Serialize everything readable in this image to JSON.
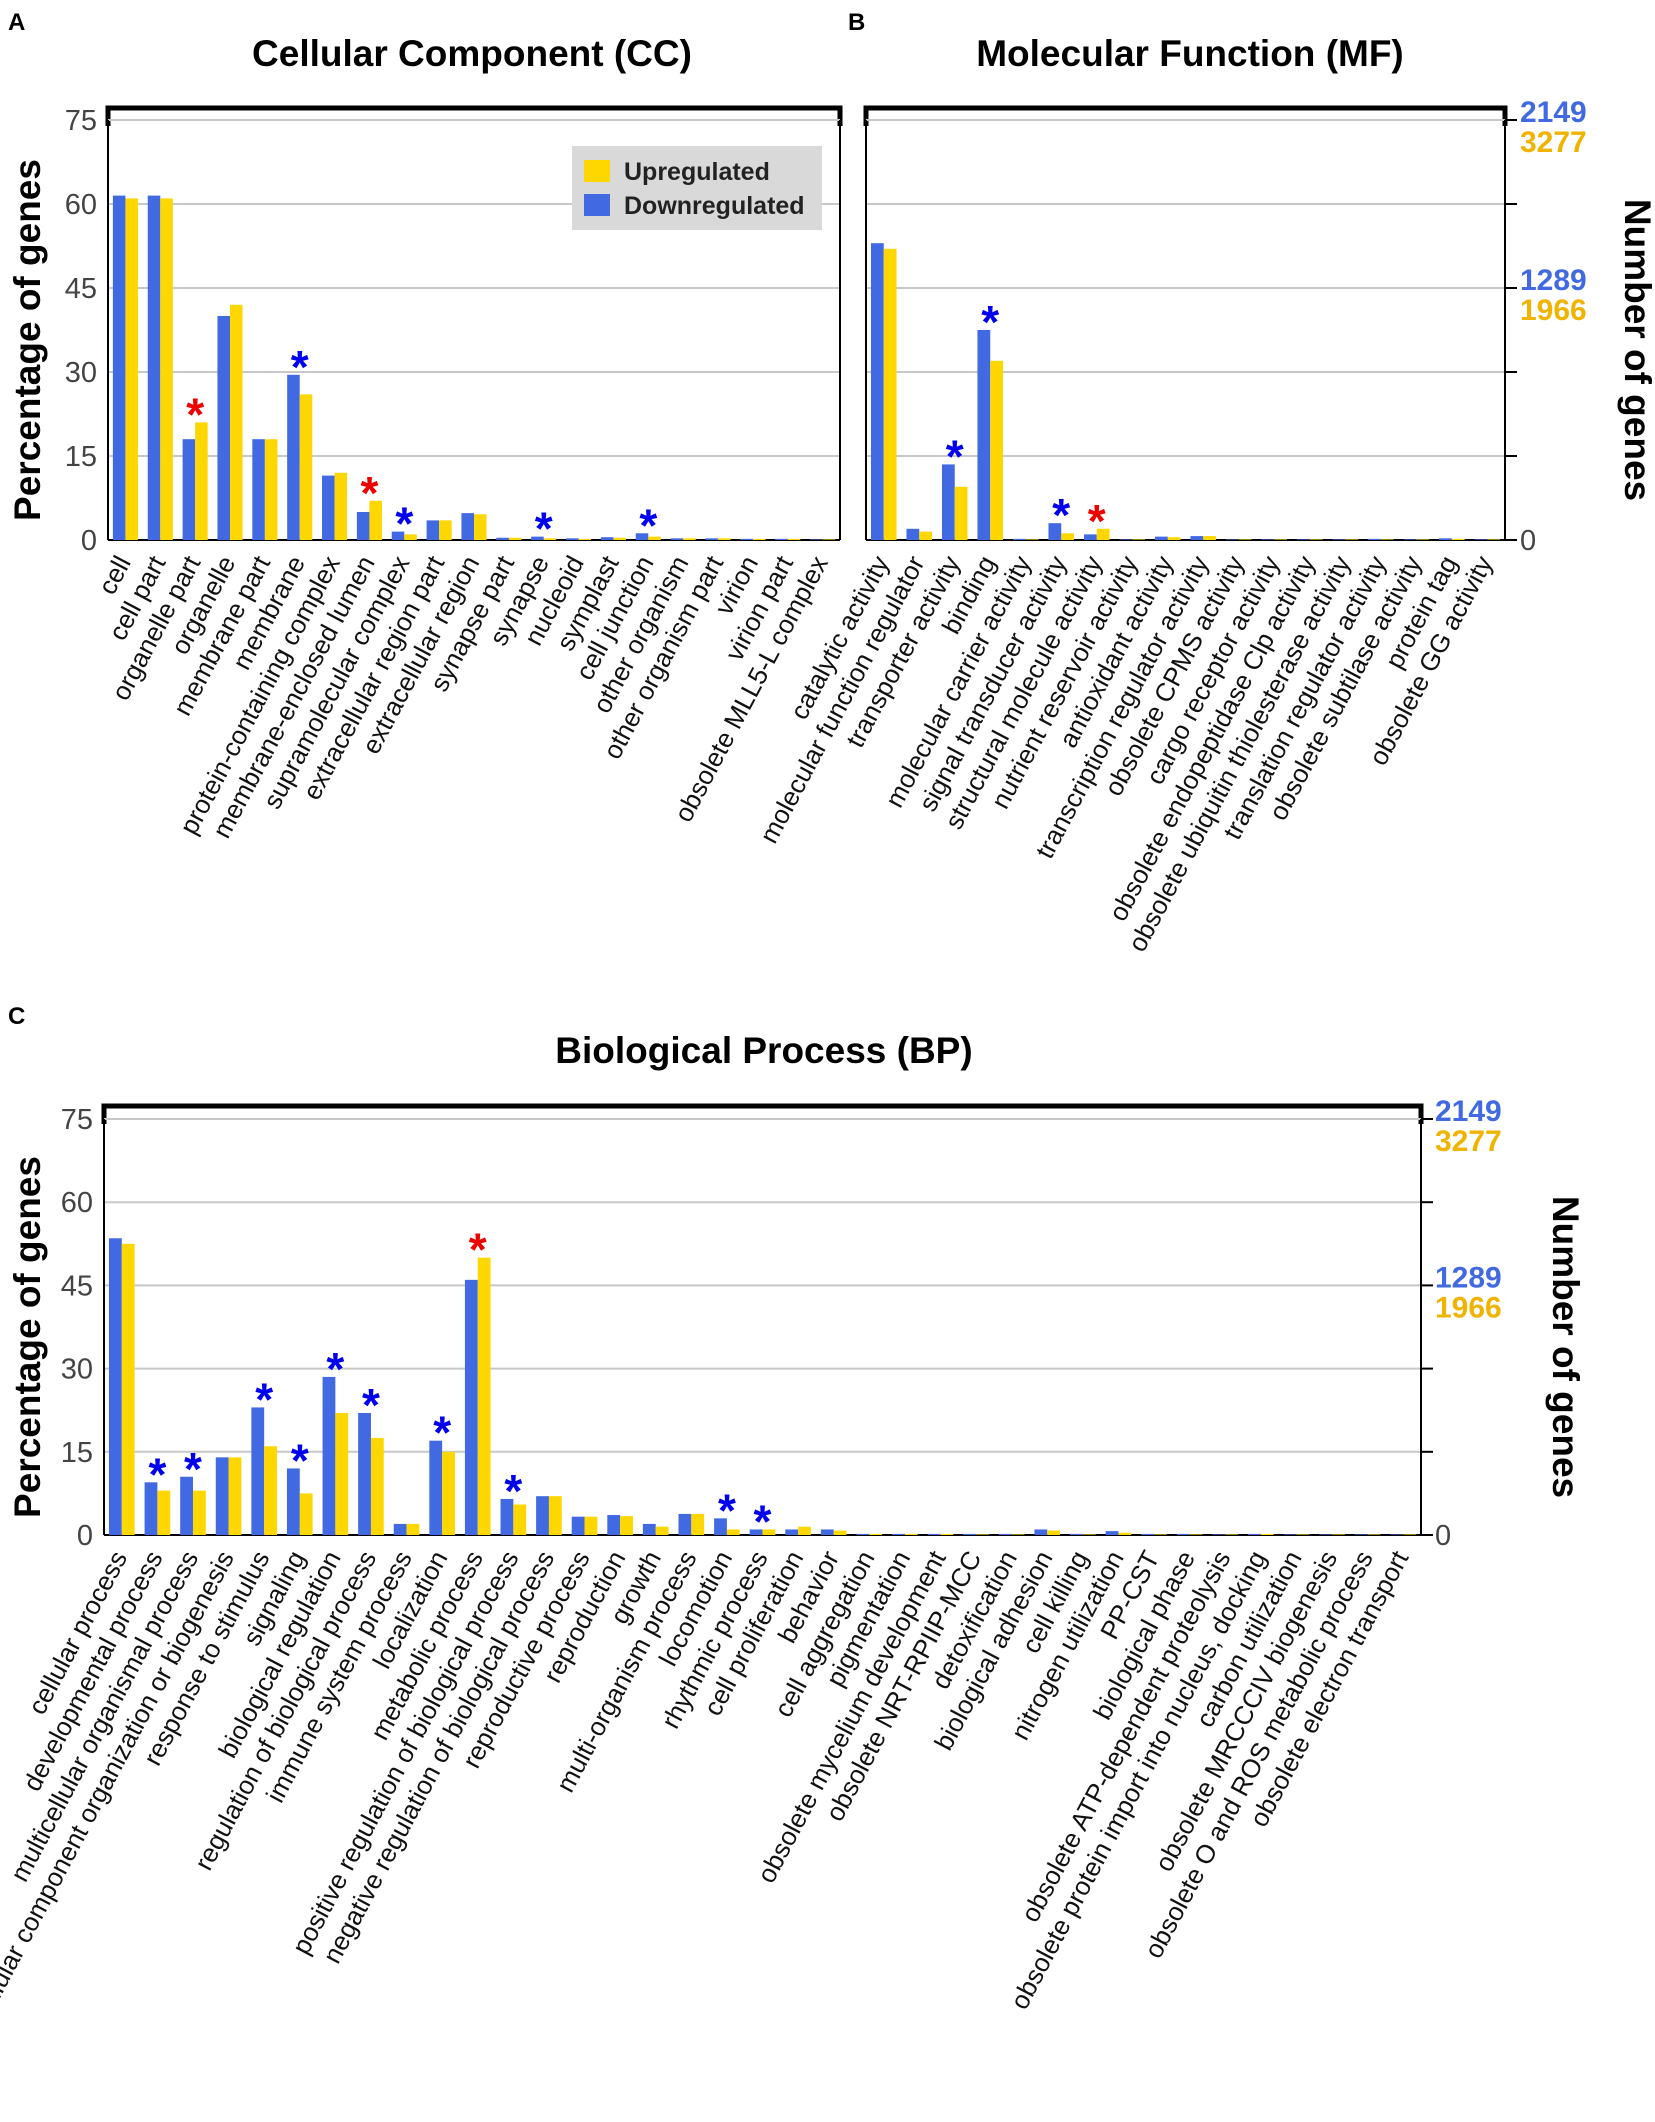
{
  "colors": {
    "downregulated": "#4169E1",
    "upregulated": "#FFD700",
    "down_count_text": "#4169E1",
    "up_count_text": "#F0B400",
    "star_down": "#0000EE",
    "star_up": "#EE0000"
  },
  "legend": {
    "up_label": "Upregulated",
    "down_label": "Downregulated"
  },
  "chart_data": [
    {
      "type": "bar",
      "panel": "A",
      "title": "Cellular Component (CC)",
      "ylabel": "Percentage of genes",
      "y2label": "",
      "ylim": [
        0,
        75
      ],
      "yticks": [
        "0",
        "15",
        "30",
        "45",
        "60",
        "75"
      ],
      "right_axis_counts": [],
      "categories": [
        "cell",
        "cell part",
        "organelle part",
        "organelle",
        "membrane part",
        "membrane",
        "protein-containing complex",
        "membrane-enclosed lumen",
        "supramolecular complex",
        "extracellular region part",
        "extracellular region",
        "synapse part",
        "synapse",
        "nucleoid",
        "symplast",
        "cell junction",
        "other organism",
        "other organism part",
        "virion",
        "virion part",
        "obsolete MLL5-L complex"
      ],
      "series": [
        {
          "name": "Downregulated",
          "values": [
            61.5,
            61.5,
            18,
            40,
            18,
            29.5,
            11.5,
            5,
            1.5,
            3.5,
            4.8,
            0.4,
            0.6,
            0.3,
            0.5,
            1.2,
            0.3,
            0.3,
            0.2,
            0.2,
            0.1
          ]
        },
        {
          "name": "Upregulated",
          "values": [
            61,
            61,
            21,
            42,
            18,
            26,
            12,
            7,
            1,
            3.5,
            4.6,
            0.4,
            0.3,
            0.2,
            0.4,
            0.6,
            0.3,
            0.3,
            0.2,
            0.2,
            0.1
          ]
        }
      ],
      "stars": [
        {
          "index": 2,
          "label": "*",
          "color": "red"
        },
        {
          "index": 5,
          "label": "*",
          "color": "blue"
        },
        {
          "index": 7,
          "label": "*",
          "color": "red"
        },
        {
          "index": 8,
          "label": "*",
          "color": "blue"
        },
        {
          "index": 12,
          "label": "*",
          "color": "blue"
        },
        {
          "index": 15,
          "label": "*",
          "color": "blue"
        }
      ]
    },
    {
      "type": "bar",
      "panel": "B",
      "title": "Molecular Function (MF)",
      "ylabel": "",
      "y2label": "Number of genes",
      "ylim": [
        0,
        75
      ],
      "yticks": [],
      "right_axis_counts": [
        {
          "value": 0,
          "down": "0",
          "up": ""
        },
        {
          "value": 45,
          "down": "1289",
          "up": "1966"
        },
        {
          "value": 75,
          "down": "2149",
          "up": "3277"
        }
      ],
      "categories": [
        "catalytic activity",
        "molecular function regulator",
        "transporter activity",
        "binding",
        "molecular carrier activity",
        "signal transducer activity",
        "structural molecule activity",
        "nutrient reservoir activity",
        "antioxidant activity",
        "transcription regulator activity",
        "obsolete CPMS activity",
        "cargo receptor activity",
        "obsolete endopeptidase Clp activity",
        "obsolete ubiquitin thiolesterase activity",
        "translation regulator activity",
        "obsolete subtilase activity",
        "protein tag",
        "obsolete GG activity"
      ],
      "series": [
        {
          "name": "Downregulated",
          "values": [
            53,
            2,
            13.5,
            37.5,
            0.2,
            3,
            1,
            0.1,
            0.6,
            0.7,
            0.1,
            0.1,
            0.1,
            0.1,
            0.2,
            0.1,
            0.3,
            0.1
          ]
        },
        {
          "name": "Upregulated",
          "values": [
            52,
            1.5,
            9.5,
            32,
            0.1,
            1.2,
            2,
            0.1,
            0.5,
            0.7,
            0.1,
            0.1,
            0.1,
            0.1,
            0.1,
            0.1,
            0.2,
            0.1
          ]
        }
      ],
      "stars": [
        {
          "index": 2,
          "label": "*",
          "color": "blue"
        },
        {
          "index": 3,
          "label": "*",
          "color": "blue"
        },
        {
          "index": 5,
          "label": "*",
          "color": "blue"
        },
        {
          "index": 6,
          "label": "*",
          "color": "red"
        }
      ]
    },
    {
      "type": "bar",
      "panel": "C",
      "title": "Biological Process (BP)",
      "ylabel": "Percentage of genes",
      "y2label": "Number of genes",
      "ylim": [
        0,
        75
      ],
      "yticks": [
        "0",
        "15",
        "30",
        "45",
        "60",
        "75"
      ],
      "right_axis_counts": [
        {
          "value": 0,
          "down": "0",
          "up": ""
        },
        {
          "value": 45,
          "down": "1289",
          "up": "1966"
        },
        {
          "value": 75,
          "down": "2149",
          "up": "3277"
        }
      ],
      "categories": [
        "cellular process",
        "developmental process",
        "multicellular organismal process",
        "cellular component organization or biogenesis",
        "response to stimulus",
        "signaling",
        "biological regulation",
        "regulation of biological process",
        "immune system process",
        "localization",
        "metabolic process",
        "positive regulation of biological process",
        "negative regulation of biological process",
        "reproductive process",
        "reproduction",
        "growth",
        "multi-organism process",
        "locomotion",
        "rhythmic process",
        "cell proliferation",
        "behavior",
        "cell aggregation",
        "pigmentation",
        "obsolete mycelium development",
        "obsolete NRT-RPIIP-MCC",
        "detoxification",
        "biological adhesion",
        "cell killing",
        "nitrogen utilization",
        "PP-CST",
        "biological phase",
        "obsolete ATP-dependent proteolysis",
        "obsolete protein import into nucleus, docking",
        "carbon utilization",
        "obsolete MRCCCIV biogenesis",
        "obsolete O and ROS metabolic process",
        "obsolete electron transport"
      ],
      "series": [
        {
          "name": "Downregulated",
          "values": [
            53.5,
            9.5,
            10.5,
            14,
            23,
            12,
            28.5,
            22,
            2,
            17,
            46,
            6.5,
            7,
            3.3,
            3.6,
            2,
            3.8,
            3,
            1,
            1,
            1,
            0.2,
            0.2,
            0.2,
            0.2,
            0.2,
            1,
            0.2,
            0.7,
            0.2,
            0.2,
            0.1,
            0.2,
            0.1,
            0.1,
            0.1,
            0.1
          ]
        },
        {
          "name": "Upregulated",
          "values": [
            52.5,
            8,
            8,
            14,
            16,
            7.5,
            22,
            17.5,
            2,
            15,
            50,
            5.5,
            7,
            3.3,
            3.4,
            1.5,
            3.8,
            1,
            1,
            1.5,
            0.8,
            0.2,
            0.2,
            0.2,
            0.1,
            0.1,
            0.8,
            0.1,
            0.4,
            0.1,
            0.1,
            0.1,
            0.2,
            0.1,
            0.1,
            0.1,
            0.1
          ]
        }
      ],
      "stars": [
        {
          "index": 1,
          "label": "*",
          "color": "blue"
        },
        {
          "index": 2,
          "label": "*",
          "color": "blue"
        },
        {
          "index": 4,
          "label": "*",
          "color": "blue"
        },
        {
          "index": 5,
          "label": "*",
          "color": "blue"
        },
        {
          "index": 6,
          "label": "*",
          "color": "blue"
        },
        {
          "index": 7,
          "label": "*",
          "color": "blue"
        },
        {
          "index": 9,
          "label": "*",
          "color": "blue"
        },
        {
          "index": 10,
          "label": "*",
          "color": "red"
        },
        {
          "index": 11,
          "label": "*",
          "color": "blue"
        },
        {
          "index": 17,
          "label": "*",
          "color": "blue"
        },
        {
          "index": 18,
          "label": "*",
          "color": "blue"
        }
      ]
    }
  ]
}
